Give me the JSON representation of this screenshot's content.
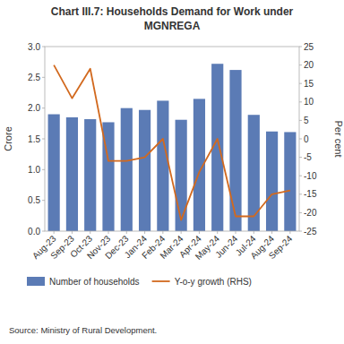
{
  "chart_data": {
    "type": "bar",
    "title": "Chart III.7: Households Demand for Work under\nMGNREGA",
    "categories": [
      "Aug-23",
      "Sep-23",
      "Oct-23",
      "Nov-23",
      "Dec-23",
      "Jan-24",
      "Feb-24",
      "Mar-24",
      "Apr-24",
      "May-24",
      "Jun-24",
      "Jul-24",
      "Aug-24",
      "Sep-24"
    ],
    "series": [
      {
        "name": "Number of households",
        "type": "bar",
        "color": "#5B7BB5",
        "values": [
          1.9,
          1.85,
          1.82,
          1.77,
          2.0,
          1.97,
          2.12,
          1.81,
          2.15,
          2.72,
          2.62,
          1.89,
          1.62,
          1.61
        ]
      },
      {
        "name": "Y-o-y growth (RHS)",
        "type": "line",
        "axis": "y2",
        "color": "#D2691E",
        "values": [
          20,
          11,
          19,
          -6,
          -6,
          -5,
          0,
          -22,
          -9,
          0,
          -21,
          -21,
          -15,
          -14
        ]
      }
    ],
    "ylabel": "Crore",
    "y2label": "Per cent",
    "ylim": [
      0.0,
      3.0
    ],
    "yticks": [
      {
        "value": 0.0,
        "label": "0.0"
      },
      0.5,
      {
        "value": 1.0,
        "label": "1.0"
      },
      1.5,
      {
        "value": 2.0,
        "label": "2.0"
      },
      2.5,
      {
        "value": 3.0,
        "label": "3.0"
      }
    ],
    "y2lim": [
      -25,
      25
    ],
    "y2ticks": [
      -25,
      -20,
      -15,
      -10,
      -5,
      0,
      5,
      10,
      15,
      20,
      25
    ],
    "source": "Source: Ministry of Rural Development.",
    "legend": "bottom",
    "grid": false
  }
}
